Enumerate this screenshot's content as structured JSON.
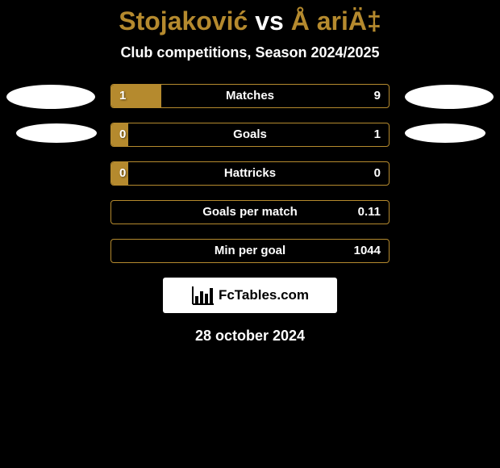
{
  "title": {
    "player1": "Stojaković",
    "vs": "vs",
    "player2": "Å ariÄ‡"
  },
  "subtitle": "Club competitions, Season 2024/2025",
  "colors": {
    "background": "#000000",
    "accent": "#b58a2e",
    "rowBorder": "#b58a2e",
    "rowFill": "#b58a2e",
    "textWhite": "#ffffff",
    "textBlack": "#000000",
    "ovalBg": "#ffffff",
    "brandBoxBg": "#ffffff"
  },
  "bars": [
    {
      "label": "Matches",
      "left": "1",
      "right": "9",
      "fill_percent": 18
    },
    {
      "label": "Goals",
      "left": "0",
      "right": "1",
      "fill_percent": 6
    },
    {
      "label": "Hattricks",
      "left": "0",
      "right": "0",
      "fill_percent": 6
    },
    {
      "label": "Goals per match",
      "left": "",
      "right": "0.11",
      "fill_percent": 0
    },
    {
      "label": "Min per goal",
      "left": "",
      "right": "1044",
      "fill_percent": 0
    }
  ],
  "brand": {
    "text": "FcTables.com"
  },
  "date": "28 october 2024"
}
